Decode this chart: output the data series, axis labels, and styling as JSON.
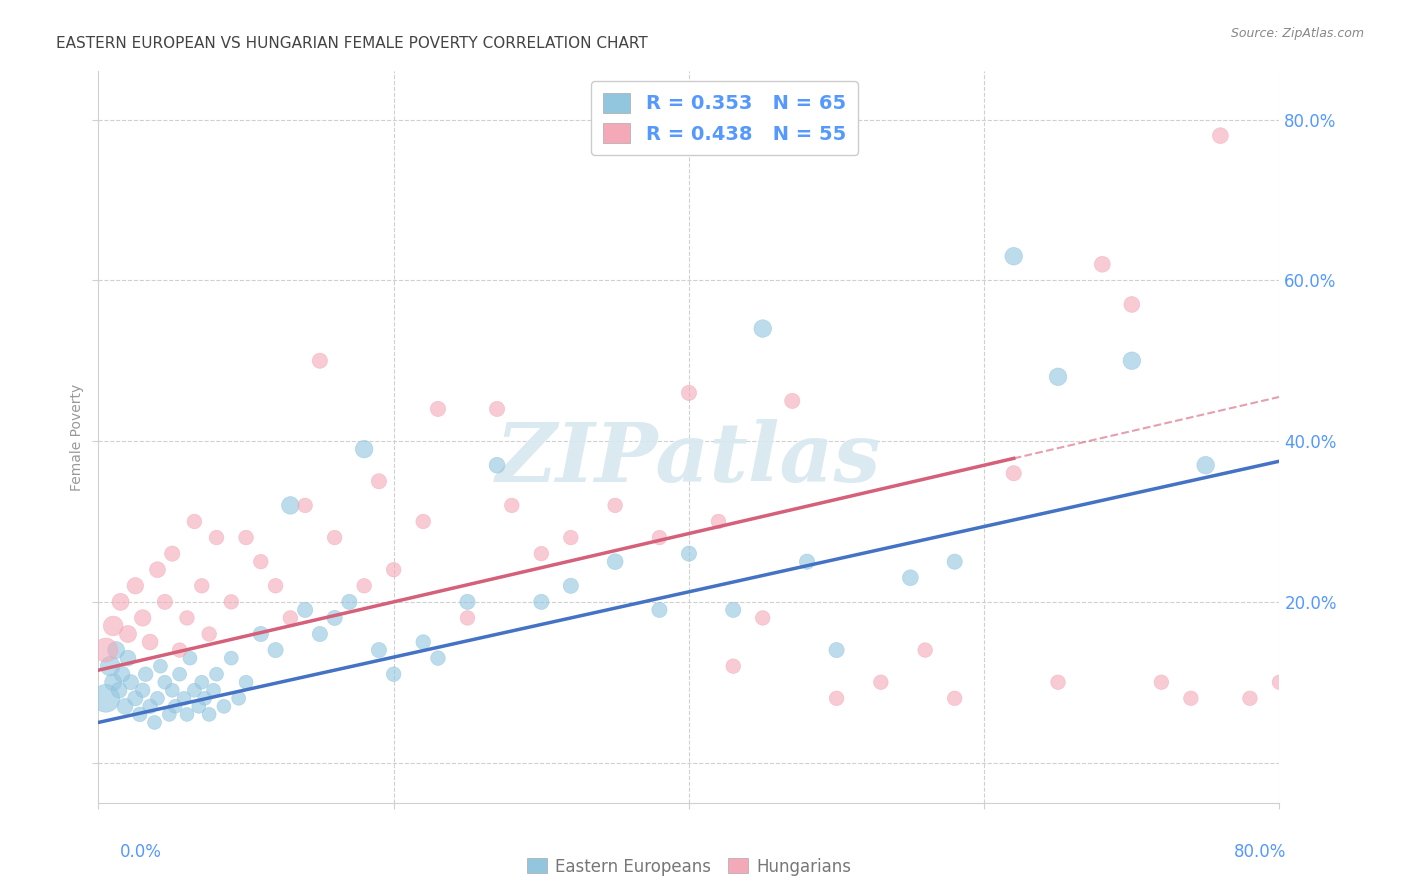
{
  "title": "EASTERN EUROPEAN VS HUNGARIAN FEMALE POVERTY CORRELATION CHART",
  "source": "Source: ZipAtlas.com",
  "ylabel": "Female Poverty",
  "xlim": [
    0.0,
    0.8
  ],
  "ylim": [
    -0.05,
    0.86
  ],
  "eastern_european_color": "#92c5de",
  "hungarian_color": "#f4a9b8",
  "trend_ee_color": "#4472c4",
  "trend_hu_color": "#d4607a",
  "R_ee": 0.353,
  "N_ee": 65,
  "R_hu": 0.438,
  "N_hu": 55,
  "ee_x": [
    0.005,
    0.008,
    0.01,
    0.012,
    0.014,
    0.016,
    0.018,
    0.02,
    0.022,
    0.025,
    0.028,
    0.03,
    0.032,
    0.035,
    0.038,
    0.04,
    0.042,
    0.045,
    0.048,
    0.05,
    0.052,
    0.055,
    0.058,
    0.06,
    0.062,
    0.065,
    0.068,
    0.07,
    0.072,
    0.075,
    0.078,
    0.08,
    0.085,
    0.09,
    0.095,
    0.1,
    0.11,
    0.12,
    0.13,
    0.14,
    0.15,
    0.16,
    0.17,
    0.18,
    0.19,
    0.2,
    0.22,
    0.23,
    0.25,
    0.27,
    0.3,
    0.32,
    0.35,
    0.38,
    0.4,
    0.43,
    0.45,
    0.48,
    0.5,
    0.55,
    0.58,
    0.62,
    0.65,
    0.7,
    0.75
  ],
  "ee_y": [
    0.08,
    0.12,
    0.1,
    0.14,
    0.09,
    0.11,
    0.07,
    0.13,
    0.1,
    0.08,
    0.06,
    0.09,
    0.11,
    0.07,
    0.05,
    0.08,
    0.12,
    0.1,
    0.06,
    0.09,
    0.07,
    0.11,
    0.08,
    0.06,
    0.13,
    0.09,
    0.07,
    0.1,
    0.08,
    0.06,
    0.09,
    0.11,
    0.07,
    0.13,
    0.08,
    0.1,
    0.16,
    0.14,
    0.32,
    0.19,
    0.16,
    0.18,
    0.2,
    0.39,
    0.14,
    0.11,
    0.15,
    0.13,
    0.2,
    0.37,
    0.2,
    0.22,
    0.25,
    0.19,
    0.26,
    0.19,
    0.54,
    0.25,
    0.14,
    0.23,
    0.25,
    0.63,
    0.48,
    0.5,
    0.37
  ],
  "ee_size": [
    400,
    200,
    150,
    150,
    130,
    130,
    130,
    130,
    120,
    120,
    110,
    110,
    110,
    110,
    100,
    100,
    100,
    100,
    100,
    100,
    100,
    100,
    100,
    100,
    100,
    100,
    100,
    100,
    100,
    100,
    100,
    100,
    100,
    100,
    100,
    100,
    120,
    120,
    160,
    120,
    120,
    120,
    120,
    160,
    120,
    110,
    110,
    110,
    120,
    130,
    120,
    120,
    130,
    120,
    120,
    120,
    160,
    120,
    120,
    130,
    120,
    160,
    160,
    160,
    160
  ],
  "hu_x": [
    0.005,
    0.01,
    0.015,
    0.02,
    0.025,
    0.03,
    0.035,
    0.04,
    0.045,
    0.05,
    0.055,
    0.06,
    0.065,
    0.07,
    0.075,
    0.08,
    0.09,
    0.1,
    0.11,
    0.12,
    0.13,
    0.14,
    0.15,
    0.16,
    0.18,
    0.19,
    0.2,
    0.22,
    0.23,
    0.25,
    0.27,
    0.28,
    0.3,
    0.32,
    0.35,
    0.38,
    0.4,
    0.42,
    0.43,
    0.45,
    0.47,
    0.5,
    0.53,
    0.56,
    0.58,
    0.62,
    0.65,
    0.68,
    0.7,
    0.72,
    0.74,
    0.76,
    0.78,
    0.8,
    0.82
  ],
  "hu_y": [
    0.14,
    0.17,
    0.2,
    0.16,
    0.22,
    0.18,
    0.15,
    0.24,
    0.2,
    0.26,
    0.14,
    0.18,
    0.3,
    0.22,
    0.16,
    0.28,
    0.2,
    0.28,
    0.25,
    0.22,
    0.18,
    0.32,
    0.5,
    0.28,
    0.22,
    0.35,
    0.24,
    0.3,
    0.44,
    0.18,
    0.44,
    0.32,
    0.26,
    0.28,
    0.32,
    0.28,
    0.46,
    0.3,
    0.12,
    0.18,
    0.45,
    0.08,
    0.1,
    0.14,
    0.08,
    0.36,
    0.1,
    0.62,
    0.57,
    0.1,
    0.08,
    0.78,
    0.08,
    0.1,
    0.12
  ],
  "hu_size": [
    300,
    200,
    150,
    150,
    140,
    140,
    130,
    130,
    120,
    120,
    110,
    110,
    110,
    110,
    110,
    110,
    110,
    110,
    110,
    110,
    110,
    110,
    120,
    110,
    110,
    120,
    110,
    110,
    120,
    110,
    120,
    110,
    110,
    110,
    110,
    110,
    120,
    110,
    110,
    110,
    120,
    110,
    110,
    110,
    110,
    120,
    110,
    130,
    130,
    110,
    110,
    130,
    110,
    110,
    110
  ],
  "trend_ee_x0": 0.0,
  "trend_ee_y0": 0.05,
  "trend_ee_x1": 0.8,
  "trend_ee_y1": 0.375,
  "trend_hu_x0": 0.0,
  "trend_hu_y0": 0.115,
  "trend_hu_x1": 0.8,
  "trend_hu_y1": 0.455,
  "trend_hu_dash_x0": 0.55,
  "trend_hu_dash_x1": 0.8,
  "background_color": "#ffffff",
  "grid_color": "#d0d0d0",
  "title_color": "#444444",
  "axis_label_color": "#5599ff",
  "legend_text_color": "#5599ff",
  "watermark_text": "ZIPatlas",
  "watermark_color": "#d8e8f0"
}
